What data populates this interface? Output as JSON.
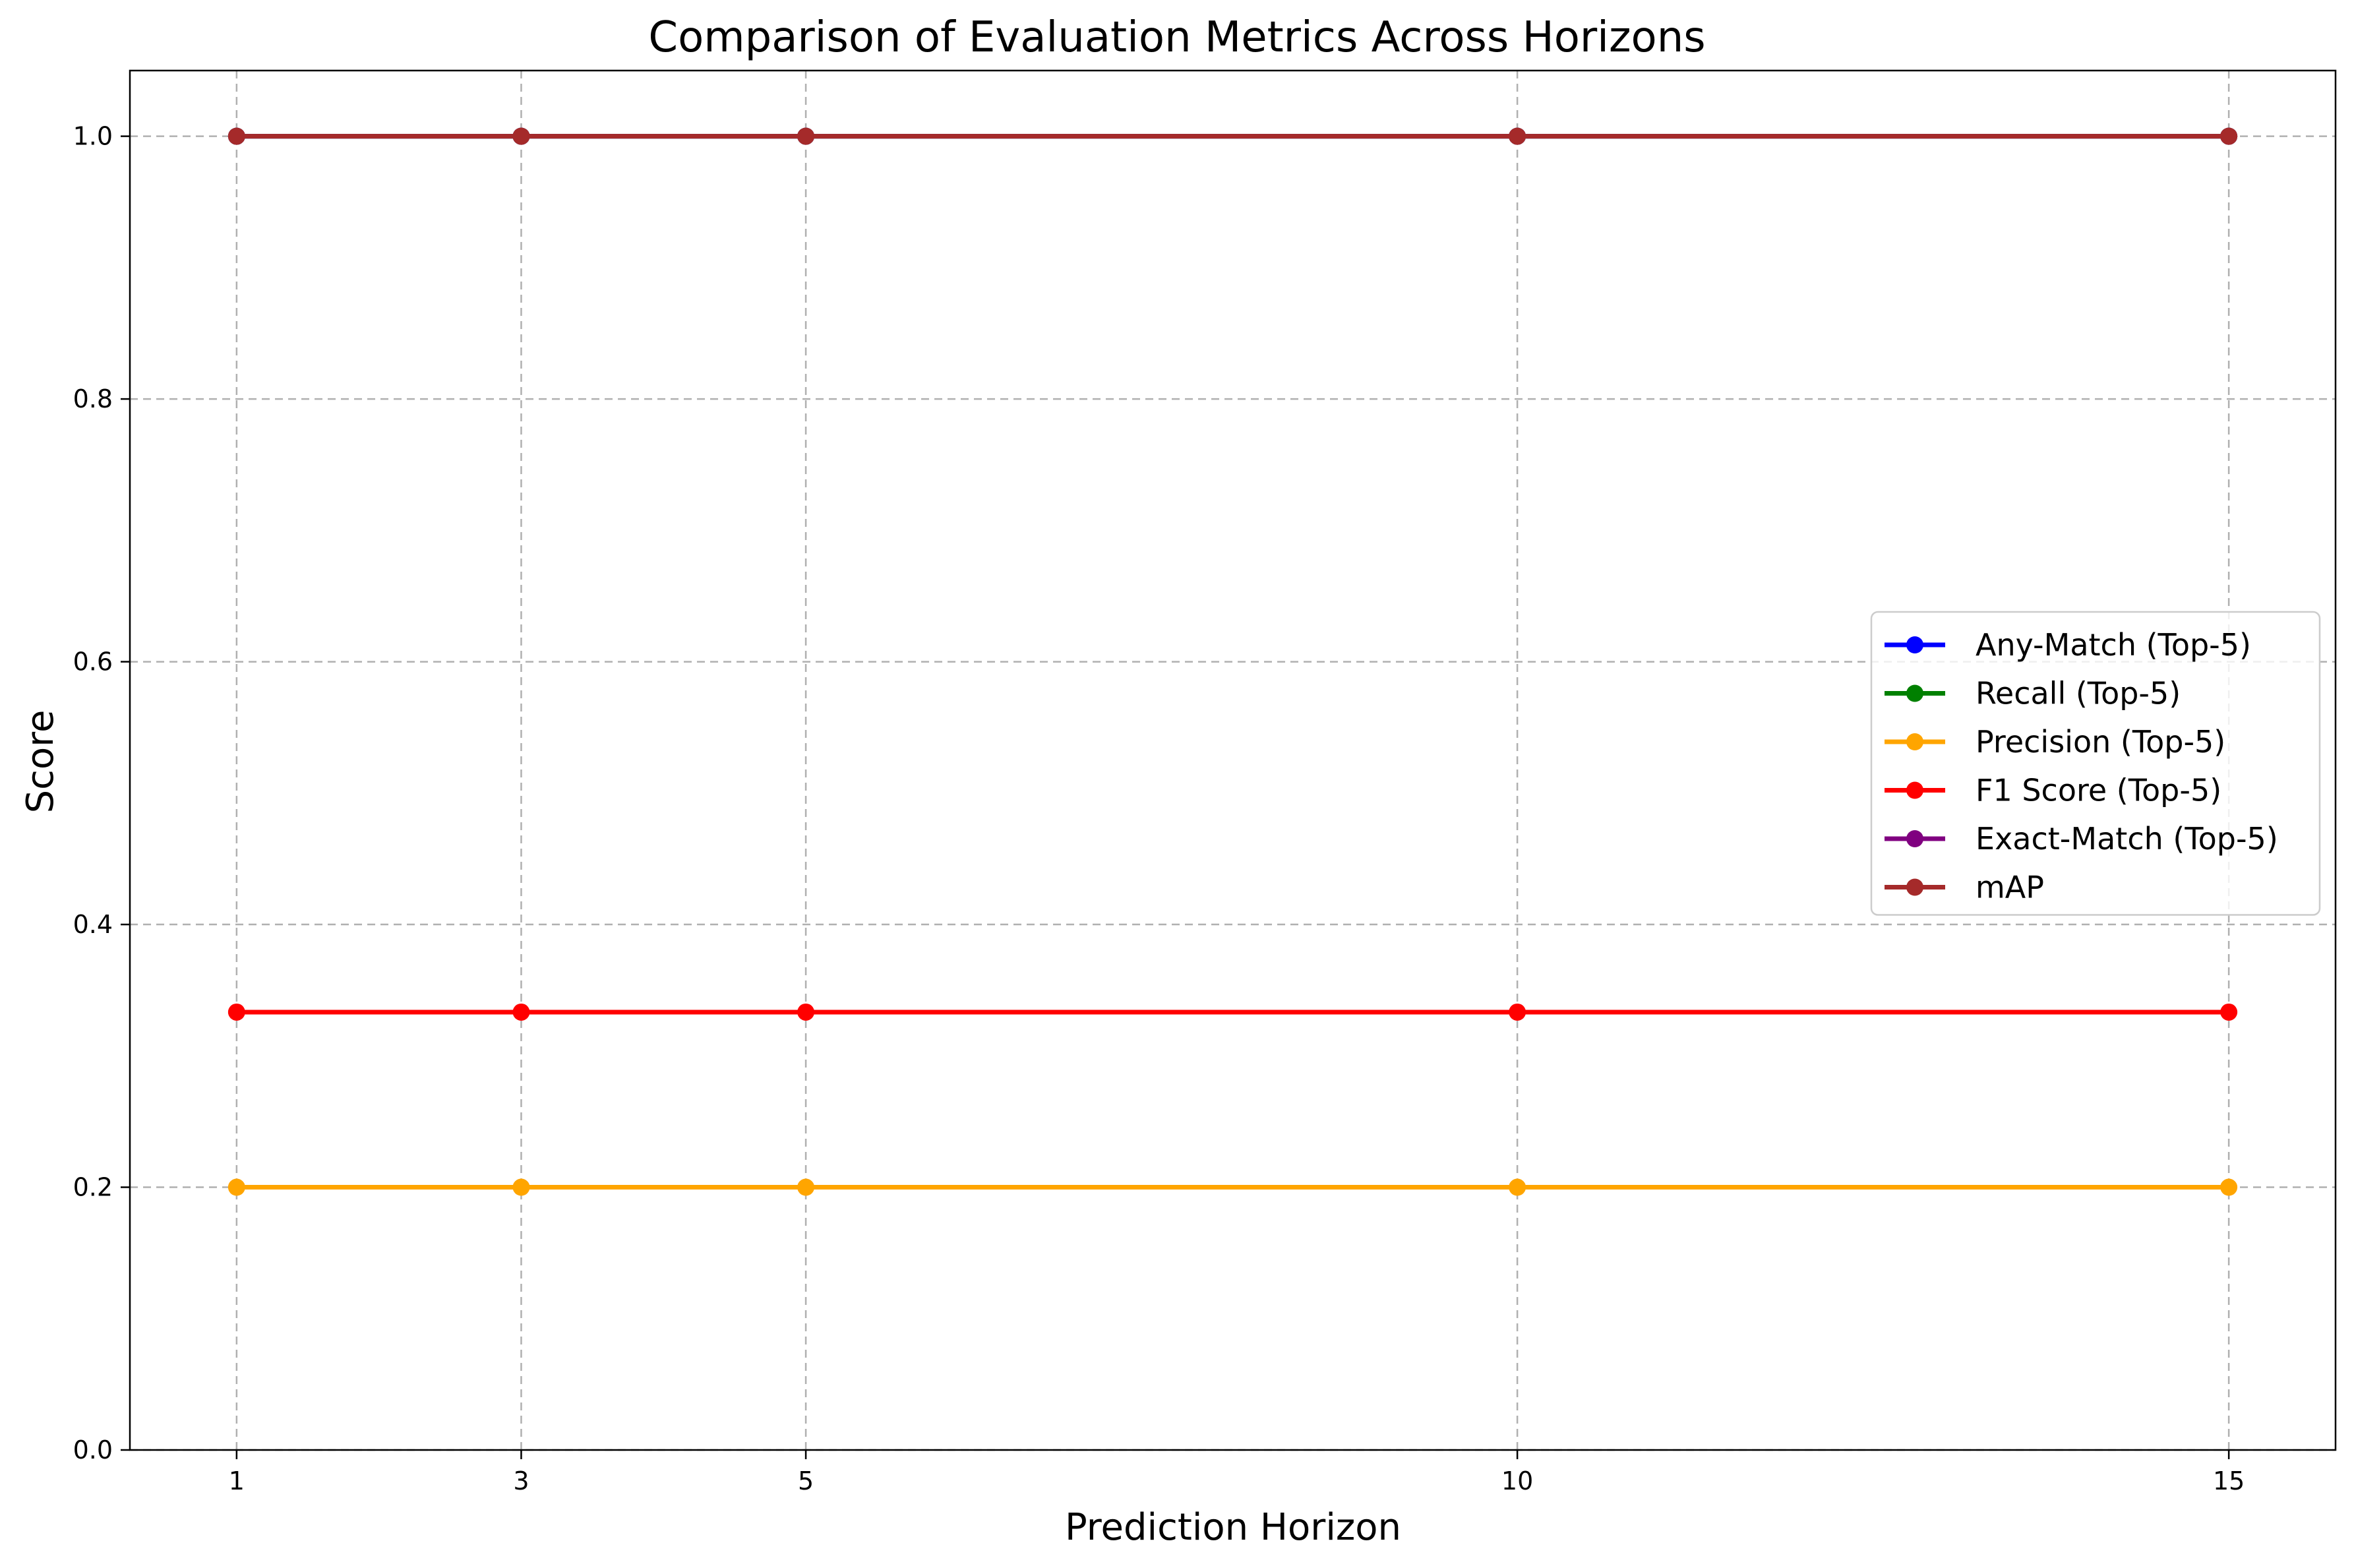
{
  "chart_data": {
    "type": "line",
    "title": "Comparison of Evaluation Metrics Across Horizons",
    "xlabel": "Prediction Horizon",
    "ylabel": "Score",
    "x": [
      1,
      3,
      5,
      10,
      15
    ],
    "x_ticks": [
      "1",
      "3",
      "5",
      "10",
      "15"
    ],
    "xlim": [
      0.25,
      15.75
    ],
    "ylim": [
      0,
      1.05
    ],
    "y_ticks": [
      0.0,
      0.2,
      0.4,
      0.6,
      0.8,
      1.0
    ],
    "y_tick_labels": [
      "0.0",
      "0.2",
      "0.4",
      "0.6",
      "0.8",
      "1.0"
    ],
    "grid": true,
    "legend_position": "center-right",
    "series": [
      {
        "name": "Any-Match (Top-5)",
        "color": "#0000ff",
        "values": [
          1.0,
          1.0,
          1.0,
          1.0,
          1.0
        ]
      },
      {
        "name": "Recall (Top-5)",
        "color": "#008000",
        "values": [
          1.0,
          1.0,
          1.0,
          1.0,
          1.0
        ]
      },
      {
        "name": "Precision (Top-5)",
        "color": "#ffa500",
        "values": [
          0.2,
          0.2,
          0.2,
          0.2,
          0.2
        ]
      },
      {
        "name": "F1 Score (Top-5)",
        "color": "#ff0000",
        "values": [
          0.3333,
          0.3333,
          0.3333,
          0.3333,
          0.3333
        ]
      },
      {
        "name": "Exact-Match (Top-5)",
        "color": "#800080",
        "values": [
          1.0,
          1.0,
          1.0,
          1.0,
          1.0
        ]
      },
      {
        "name": "mAP",
        "color": "#a52a2a",
        "values": [
          1.0,
          1.0,
          1.0,
          1.0,
          1.0
        ]
      }
    ]
  }
}
